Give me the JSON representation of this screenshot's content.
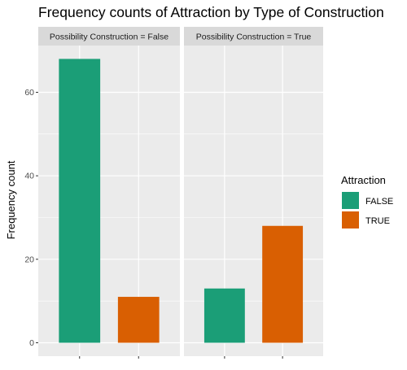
{
  "chart_data": {
    "type": "bar",
    "title": "Frequency counts of Attraction by Type of Construction",
    "xlabel": "",
    "ylabel": "Frequency count",
    "ylim": [
      0,
      70
    ],
    "yticks": [
      0,
      20,
      40,
      60
    ],
    "grid": true,
    "legend": {
      "title": "Attraction",
      "placement": "right",
      "entries": [
        {
          "label": "FALSE",
          "color": "#1b9e77"
        },
        {
          "label": "TRUE",
          "color": "#d95f02"
        }
      ]
    },
    "categories": [
      "FALSE",
      "TRUE"
    ],
    "facets": [
      {
        "label": "Possibility Construction = False",
        "values": [
          68,
          11
        ]
      },
      {
        "label": "Possibility Construction = True",
        "values": [
          13,
          28
        ]
      }
    ],
    "colors": {
      "panel_bg": "#ebebeb",
      "strip_bg": "#d9d9d9",
      "grid": "#ffffff",
      "axis_text": "#4d4d4d"
    }
  }
}
